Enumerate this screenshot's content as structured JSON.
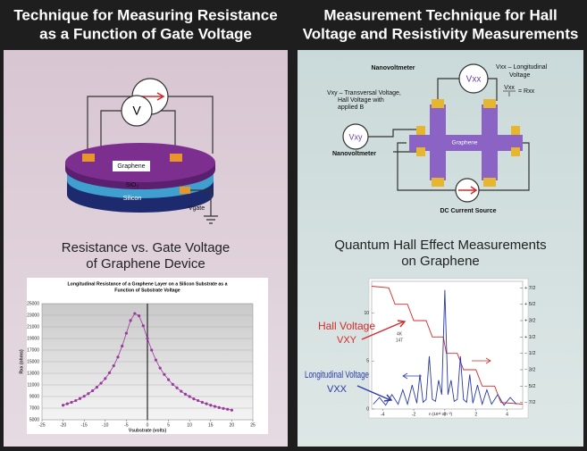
{
  "left": {
    "header": [
      "Technique for Measuring Resistance",
      "as a Function of Gate Voltage"
    ],
    "diagram": {
      "voltmeter": "V",
      "graphene": "Graphene",
      "oxide": "SiO₂",
      "silicon": "Silicon",
      "gate": "Vgate"
    },
    "subtitle": [
      "Resistance vs. Gate Voltage",
      "of Graphene Device"
    ]
  },
  "right": {
    "header": [
      "Measurement Technique for Hall",
      "Voltage and Resistivity Measurements"
    ],
    "diagram": {
      "nanovoltmeter_top": "Nanovoltmeter",
      "vxx_note": [
        "Vxx – Longitudinal",
        "Voltage"
      ],
      "fraction_num": "Vxx",
      "fraction_den": "I",
      "fraction_rhs": "= Rxx",
      "vxy_note": [
        "Vxy – Transversal Voltage,",
        "Hall Voltage with",
        "applied B"
      ],
      "vxx_meter": "Vxx",
      "vxy_meter": "Vxy",
      "graphene": "Graphene",
      "nanovoltmeter_left": "Nanovoltmeter",
      "current_source": "DC Current Source"
    },
    "subtitle": [
      "Quantum Hall Effect Measurements",
      "on Graphene"
    ]
  },
  "chart_data": [
    {
      "type": "line",
      "title": [
        "Longitudinal Resistance of a Graphene Layer on a Silicon Substrate as a",
        "Function of Substrate Voltage"
      ],
      "x_label": "Vsubstrate (volts)",
      "y_label": "Rxx (ohms)",
      "grid": true,
      "markers": true,
      "xlim": [
        -25,
        25
      ],
      "xticks": [
        -25,
        -20,
        -15,
        -10,
        -5,
        0,
        5,
        10,
        15,
        20,
        25
      ],
      "ylim": [
        5000,
        25000
      ],
      "yticks": [
        5000,
        7000,
        9000,
        11000,
        13000,
        15000,
        17000,
        19000,
        21000,
        23000,
        25000
      ],
      "series": [
        {
          "color": "#9b3a9e",
          "x": [
            -20,
            -19,
            -18,
            -17,
            -16,
            -15,
            -14,
            -13,
            -12,
            -11,
            -10,
            -9,
            -8,
            -7,
            -6,
            -5,
            -4,
            -3,
            -2,
            -1,
            0,
            1,
            2,
            3,
            4,
            5,
            6,
            7,
            8,
            9,
            10,
            11,
            12,
            13,
            14,
            15,
            16,
            17,
            18,
            19,
            20
          ],
          "values": [
            7500,
            7750,
            8000,
            8300,
            8650,
            9050,
            9500,
            10000,
            10600,
            11300,
            12100,
            13100,
            14300,
            15800,
            17700,
            19900,
            22100,
            23300,
            22900,
            21200,
            19000,
            17000,
            15300,
            13900,
            12800,
            11900,
            11100,
            10500,
            9900,
            9400,
            9000,
            8600,
            8300,
            8000,
            7750,
            7500,
            7300,
            7100,
            6950,
            6800,
            6650
          ]
        }
      ]
    },
    {
      "type": "line",
      "x_label": "n (10¹² cm⁻²)",
      "annotation": [
        "4K",
        "14T"
      ],
      "xlim": [
        -4.7,
        5
      ],
      "xticks": [
        -4,
        -2,
        0,
        2,
        4
      ],
      "ylim": [
        0,
        13.3
      ],
      "yticks": [
        0,
        5,
        10
      ],
      "y2lim": [
        -3.9,
        3.9
      ],
      "y2ticks": [
        {
          "value": 3.5,
          "label": "+ 7/2"
        },
        {
          "value": 2.5,
          "label": "+ 5/2"
        },
        {
          "value": 1.5,
          "label": "+ 3/2"
        },
        {
          "value": 0.5,
          "label": "+ 1/2"
        },
        {
          "value": -0.5,
          "label": "− 1/2"
        },
        {
          "value": -1.5,
          "label": "− 3/2"
        },
        {
          "value": -2.5,
          "label": "− 5/2"
        },
        {
          "value": -3.5,
          "label": "− 7/2"
        }
      ],
      "series": [
        {
          "name": "Hall Voltage",
          "symbol": "VXY",
          "color": "#d42a2a",
          "axis": "y2",
          "x": [
            -4.7,
            -3.6,
            -3.2,
            -2.4,
            -2.0,
            -1.2,
            -0.8,
            -0.1,
            0.1,
            0.8,
            1.2,
            2.0,
            2.4,
            3.2,
            3.6,
            5.0
          ],
          "values": [
            3.6,
            3.5,
            2.5,
            2.5,
            1.5,
            1.5,
            0.5,
            0.5,
            -0.5,
            -0.5,
            -1.5,
            -1.5,
            -2.5,
            -2.5,
            -3.5,
            -3.6
          ]
        },
        {
          "name": "Longitudinal Voltage",
          "symbol": "VXX",
          "color": "#2a3aa8",
          "x": [
            -4.6,
            -4.2,
            -3.8,
            -3.4,
            -3.0,
            -2.7,
            -2.4,
            -2.1,
            -1.8,
            -1.6,
            -1.4,
            -1.2,
            -1.0,
            -0.8,
            -0.6,
            -0.4,
            -0.2,
            0,
            0.2,
            0.4,
            0.6,
            0.8,
            1.0,
            1.2,
            1.4,
            1.6,
            1.8,
            2.1,
            2.4,
            2.7,
            3.0,
            3.4,
            3.8,
            4.2,
            4.6
          ],
          "values": [
            0.5,
            1.2,
            0.4,
            1.5,
            0.5,
            2.0,
            0.5,
            2.5,
            0.6,
            3.6,
            0.7,
            1.0,
            5.5,
            1.0,
            0.8,
            3.0,
            1.5,
            12.4,
            1.5,
            3.0,
            0.8,
            1.0,
            5.5,
            1.0,
            0.7,
            3.6,
            0.6,
            2.5,
            0.5,
            2.0,
            0.5,
            1.5,
            0.4,
            1.2,
            0.5
          ]
        }
      ]
    }
  ]
}
